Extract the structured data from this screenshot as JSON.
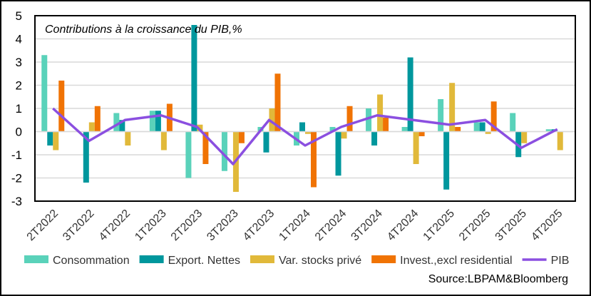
{
  "chart_data": {
    "type": "bar",
    "title": "Contributions à la croissance du PIB,%",
    "source": "Source:LBPAM&Bloomberg",
    "categories": [
      "2T2022",
      "3T2022",
      "4T2022",
      "1T2023",
      "2T2023",
      "3T2023",
      "4T2023",
      "1T2024",
      "2T2024",
      "3T2024",
      "4T2024",
      "1T2025",
      "2T2025",
      "3T2025",
      "4T2025"
    ],
    "ylim": [
      -3,
      5
    ],
    "yticks": [
      -3,
      -2,
      -1,
      0,
      1,
      2,
      3,
      4,
      5
    ],
    "grid": true,
    "legend_position": "bottom",
    "series": [
      {
        "name": "Consommation",
        "kind": "bar",
        "color": "#5AD2BA",
        "values": [
          3.3,
          0,
          0.8,
          0.9,
          -2.0,
          -1.7,
          0.2,
          -0.6,
          0.2,
          1.0,
          0.2,
          1.4,
          0.4,
          0.8,
          0.1
        ]
      },
      {
        "name": "Export. Nettes",
        "kind": "bar",
        "color": "#00979D",
        "values": [
          -0.6,
          -2.2,
          0.5,
          0.9,
          4.6,
          0,
          -0.9,
          0.4,
          -1.9,
          -0.6,
          3.2,
          -2.5,
          0.4,
          -1.1,
          0.1
        ]
      },
      {
        "name": "Var. stocks privé",
        "kind": "bar",
        "color": "#E1B93A",
        "values": [
          -0.8,
          0.4,
          -0.6,
          -0.8,
          0.3,
          -2.6,
          1.0,
          -0.1,
          -0.3,
          1.6,
          -1.4,
          2.1,
          -0.1,
          -0.5,
          -0.8
        ]
      },
      {
        "name": "Invest.,excl residential",
        "kind": "bar",
        "color": "#F07304",
        "values": [
          2.2,
          1.1,
          0,
          1.2,
          -1.4,
          -0.5,
          2.5,
          -2.4,
          1.1,
          0.6,
          -0.2,
          0.2,
          1.3,
          0,
          0
        ]
      },
      {
        "name": "PIB",
        "kind": "line",
        "color": "#8B4FE0",
        "values": [
          1.0,
          -0.4,
          0.5,
          0.7,
          0.2,
          -1.4,
          0.5,
          -0.6,
          0.2,
          0.7,
          0.5,
          0.3,
          0.5,
          -0.7,
          0.1
        ]
      }
    ]
  }
}
